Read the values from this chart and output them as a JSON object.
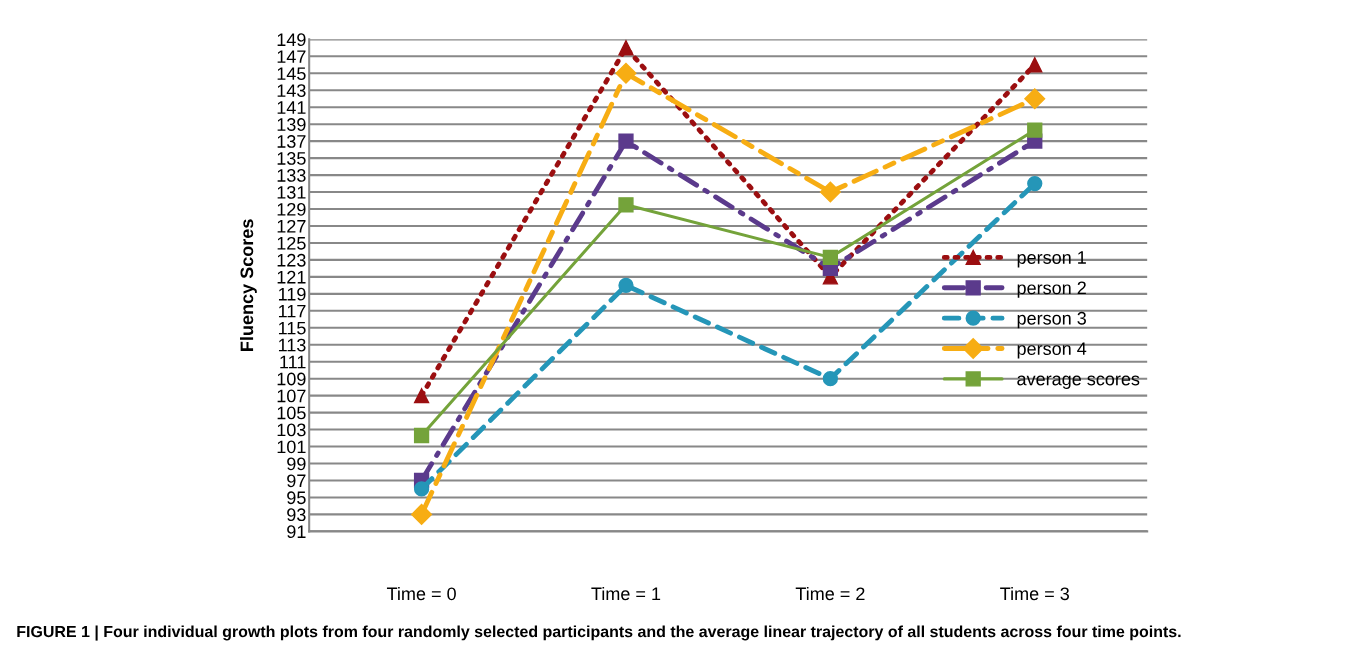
{
  "chart_data": {
    "type": "line",
    "ylabel": "Fluency Scores",
    "categories": [
      "Time = 0",
      "Time = 1",
      "Time = 2",
      "Time = 3"
    ],
    "series": [
      {
        "name": "person 1",
        "color": "#9b0e10",
        "values": [
          107,
          148,
          121,
          146
        ],
        "marker": "triangle",
        "line_style": "dotted"
      },
      {
        "name": "person 2",
        "color": "#5b3a8c",
        "values": [
          97,
          137,
          122,
          137
        ],
        "marker": "square",
        "line_style": "dashdot"
      },
      {
        "name": "person 3",
        "color": "#2596b8",
        "values": [
          96,
          120,
          109,
          132
        ],
        "marker": "circle",
        "line_style": "dashed"
      },
      {
        "name": "person 4",
        "color": "#f7ad13",
        "values": [
          93,
          145,
          131,
          142
        ],
        "marker": "diamond",
        "line_style": "longdash"
      },
      {
        "name": "average scores",
        "color": "#74a33a",
        "values": [
          102.3,
          129.5,
          123.3,
          138.3
        ],
        "marker": "square",
        "line_style": "solid"
      }
    ],
    "ylim": [
      91,
      149
    ],
    "yticks": [
      91,
      93,
      95,
      97,
      99,
      101,
      103,
      105,
      107,
      109,
      111,
      113,
      115,
      117,
      119,
      121,
      123,
      125,
      127,
      129,
      131,
      133,
      135,
      137,
      139,
      141,
      143,
      145,
      147,
      149
    ],
    "grid": "y",
    "legend": "right",
    "annotations": [
      "FIGURE 1 | Four individual growth plots from four randomly selected participants and the average linear trajectory of all students across four time points."
    ]
  }
}
